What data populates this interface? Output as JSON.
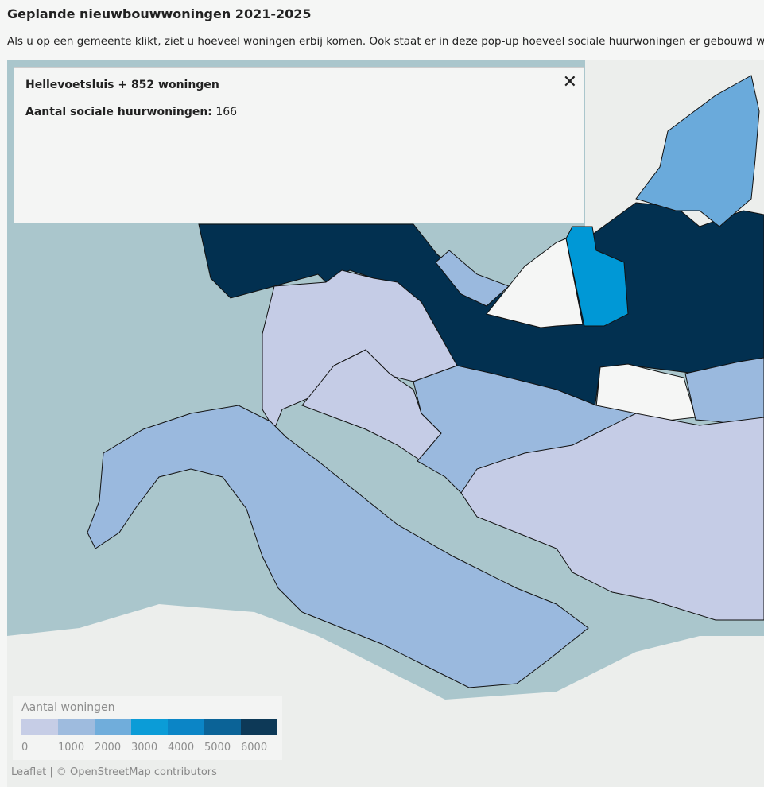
{
  "header": {
    "title": "Geplande nieuwbouwwoningen 2021-2025",
    "subtitle": "Als u op een gemeente klikt, ziet u hoeveel woningen erbij komen. Ook staat er in deze pop-up hoeveel sociale huurwoningen er gebouwd worden."
  },
  "popup": {
    "title": "Hellevoetsluis + 852 woningen",
    "label": "Aantal sociale huurwoningen:",
    "value": 166
  },
  "legend": {
    "title": "Aantal woningen",
    "colors": [
      "#c5cce6",
      "#9ab9de",
      "#6aaadb",
      "#0098d6",
      "#0080c4",
      "#005c93",
      "#023050"
    ],
    "ticks": [
      0,
      1000,
      2000,
      3000,
      4000,
      5000,
      6000
    ]
  },
  "attribution": {
    "leaflet": "Leaflet",
    "osm": "© OpenStreetMap contributors"
  }
}
